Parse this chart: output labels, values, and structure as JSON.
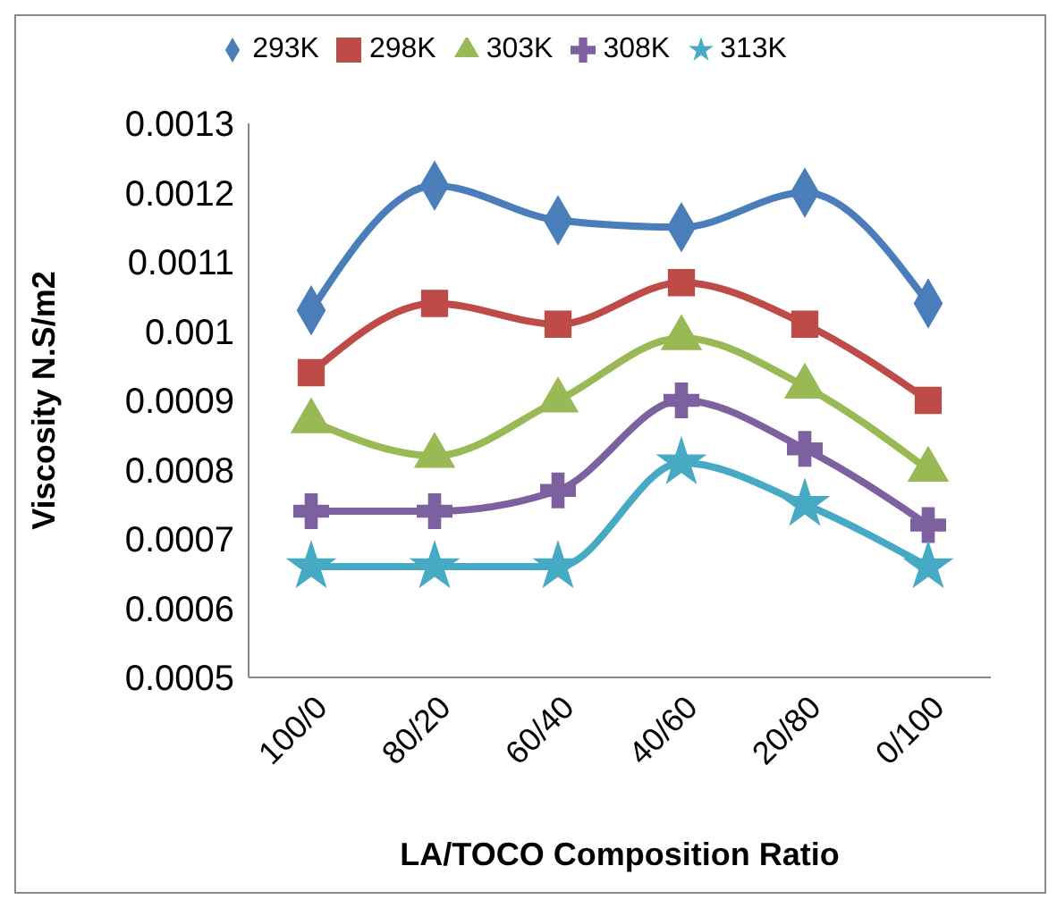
{
  "chart_data": {
    "type": "line",
    "xlabel": "LA/TOCO Composition Ratio",
    "ylabel": "Viscosity N.S/m2",
    "categories": [
      "100/0",
      "80/20",
      "60/40",
      "40/60",
      "20/80",
      "0/100"
    ],
    "series": [
      {
        "name": "293K",
        "color": "#4a7ebb",
        "marker": "diamond",
        "values": [
          0.00103,
          0.00121,
          0.00116,
          0.00115,
          0.0012,
          0.00104
        ]
      },
      {
        "name": "298K",
        "color": "#be4b48",
        "marker": "square",
        "values": [
          0.00094,
          0.00104,
          0.00101,
          0.00107,
          0.00101,
          0.0009
        ]
      },
      {
        "name": "303K",
        "color": "#98b954",
        "marker": "triangle",
        "values": [
          0.00087,
          0.00082,
          0.0009,
          0.00099,
          0.00092,
          0.0008
        ]
      },
      {
        "name": "308K",
        "color": "#7d60a0",
        "marker": "cross",
        "values": [
          0.00074,
          0.00074,
          0.00077,
          0.0009,
          0.00083,
          0.00072
        ]
      },
      {
        "name": "313K",
        "color": "#46aac5",
        "marker": "star",
        "values": [
          0.00066,
          0.00066,
          0.00066,
          0.00081,
          0.00075,
          0.00066
        ]
      }
    ],
    "ylim": [
      0.0005,
      0.0013
    ],
    "yticks": [
      0.0005,
      0.0006,
      0.0007,
      0.0008,
      0.0009,
      0.001,
      0.0011,
      0.0012,
      0.0013
    ],
    "grid": false,
    "legend": "top",
    "line_style": "solid"
  }
}
